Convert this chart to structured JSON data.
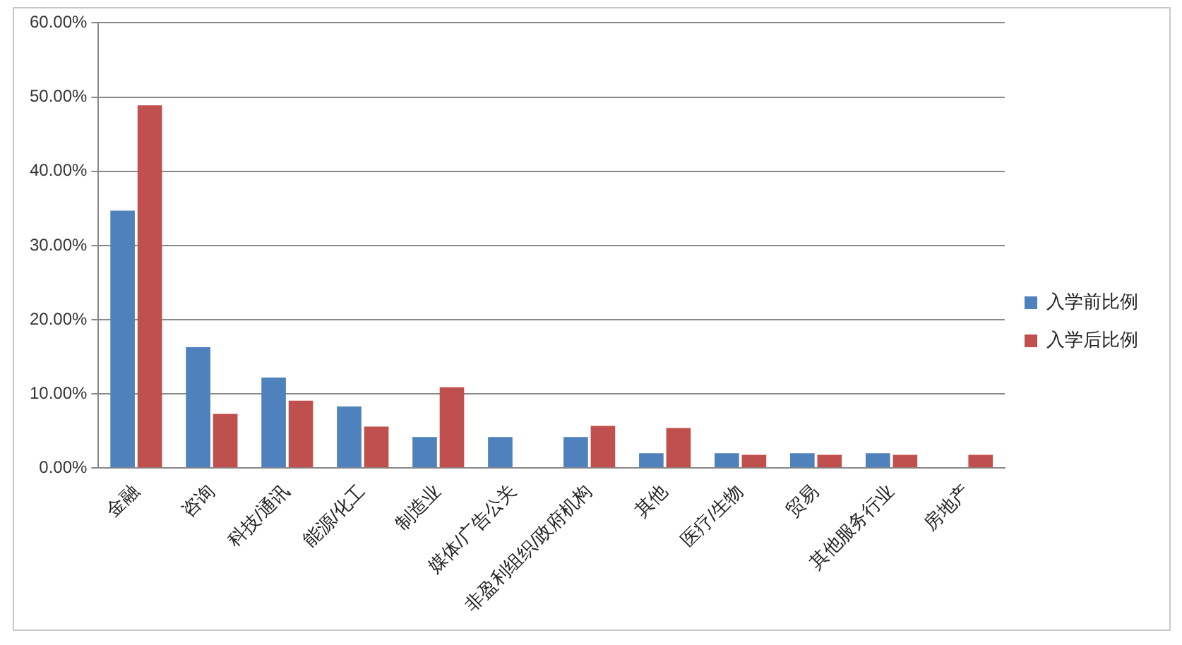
{
  "chart_data": {
    "type": "bar",
    "categories": [
      "金融",
      "咨询",
      "科技/通讯",
      "能源/化工",
      "制造业",
      "媒体/广告公关",
      "非盈利组织/政府机构",
      "其他",
      "医疗/生物",
      "贸易",
      "其他服务行业",
      "房地产"
    ],
    "series": [
      {
        "name": "入学前比例",
        "color": "#4f81bd",
        "values": [
          34.7,
          16.3,
          12.2,
          8.3,
          4.2,
          4.2,
          4.2,
          2.0,
          2.0,
          2.0,
          2.0,
          null
        ]
      },
      {
        "name": "入学后比例",
        "color": "#c0504d",
        "values": [
          48.9,
          7.3,
          9.1,
          5.6,
          10.9,
          null,
          5.7,
          5.4,
          1.8,
          1.8,
          1.8,
          1.8
        ]
      }
    ],
    "ylim": [
      0,
      60
    ],
    "yticks": [
      {
        "value": 0,
        "label": "0.00%"
      },
      {
        "value": 10,
        "label": "10.00%"
      },
      {
        "value": 20,
        "label": "20.00%"
      },
      {
        "value": 30,
        "label": "30.00%"
      },
      {
        "value": 40,
        "label": "40.00%"
      },
      {
        "value": 50,
        "label": "50.00%"
      },
      {
        "value": 60,
        "label": "60.00%"
      }
    ],
    "grid": "y",
    "legend": "right"
  }
}
